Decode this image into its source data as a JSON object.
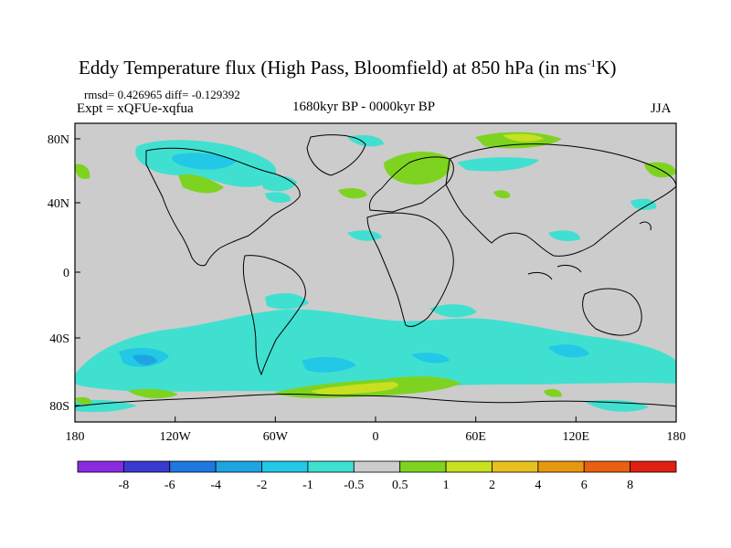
{
  "title": "Eddy Temperature flux (High Pass, Bloomfield) at 850 hPa (in ms",
  "title_sup": "-1",
  "title_end": "K)",
  "stats": "rmsd= 0.426965 diff= -0.129392",
  "expt": "Expt = xQFUe-xqfua",
  "period": "1680kyr BP - 0000kyr BP",
  "season": "JJA",
  "lat_ticks": [
    "80N",
    "40N",
    "0",
    "40S",
    "80S"
  ],
  "lon_ticks": [
    "180",
    "120W",
    "60W",
    "0",
    "60E",
    "120E",
    "180"
  ],
  "colorbar": {
    "labels": [
      "-8",
      "-6",
      "-4",
      "-2",
      "-1",
      "-0.5",
      "0.5",
      "1",
      "2",
      "4",
      "6",
      "8"
    ],
    "colors": [
      "#8a2be2",
      "#3a3ad0",
      "#1e78e0",
      "#1ea4e0",
      "#22c8e6",
      "#40e0d0",
      "#cccccc",
      "#7ed321",
      "#c8e020",
      "#e8c020",
      "#e89810",
      "#e86010",
      "#e02010"
    ]
  },
  "map": {
    "ocean_color": "#cccccc",
    "positive_color": "#7ed321",
    "positive_strong_color": "#c8e020",
    "negative_color": "#40e0d0",
    "negative_strong_color": "#22c8e6",
    "negative_stronger_color": "#1ea4e0"
  }
}
